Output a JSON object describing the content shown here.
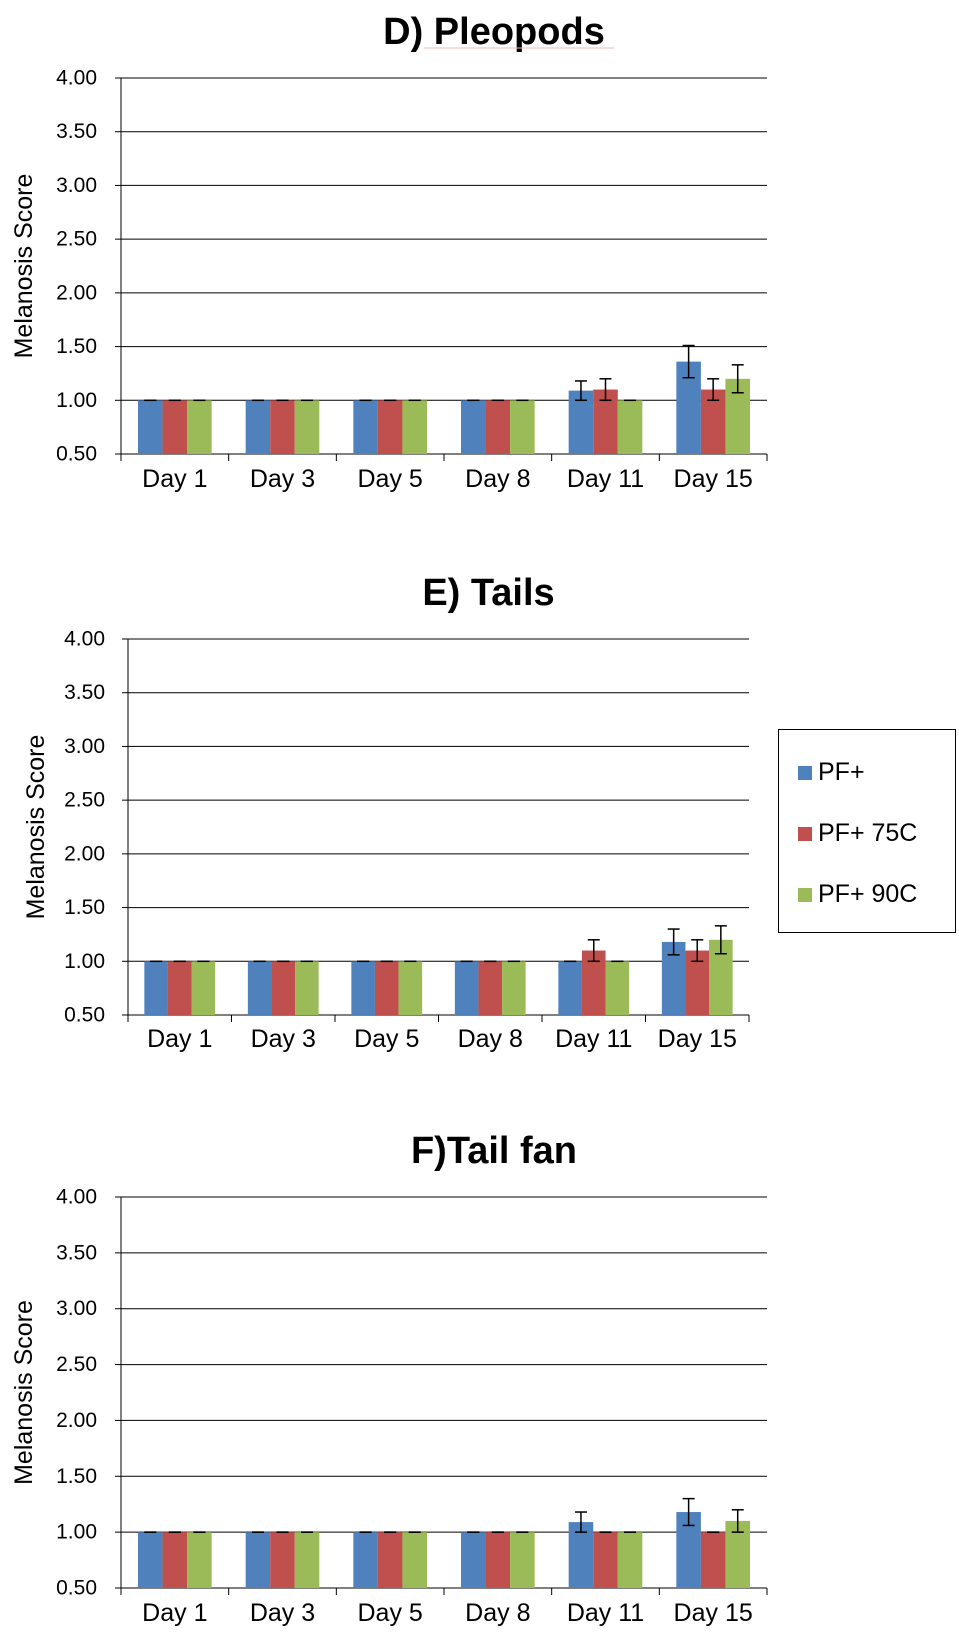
{
  "colors": {
    "series1": "#4f81bd",
    "series2": "#c0504d",
    "series3": "#9bbb59",
    "grid": "#000000"
  },
  "legend": {
    "placement": "right",
    "items": [
      {
        "label": "PF+",
        "color": "#4f81bd"
      },
      {
        "label": "PF+ 75C",
        "color": "#c0504d"
      },
      {
        "label": "PF+ 90C",
        "color": "#9bbb59"
      }
    ]
  },
  "chart_data": [
    {
      "type": "bar",
      "title": "D) Pleopods",
      "ylabel": "Melanosis Score",
      "xlabel": "",
      "ylim": [
        0.5,
        4.0
      ],
      "yticks": [
        "0.50",
        "1.00",
        "1.50",
        "2.00",
        "2.50",
        "3.00",
        "3.50",
        "4.00"
      ],
      "grid": true,
      "categories": [
        "Day 1",
        "Day 3",
        "Day 5",
        "Day 8",
        "Day 11",
        "Day 15"
      ],
      "series": [
        {
          "name": "PF+",
          "values": [
            1.0,
            1.0,
            1.0,
            1.0,
            1.09,
            1.36
          ],
          "errors": [
            0,
            0,
            0,
            0,
            0.09,
            0.15
          ]
        },
        {
          "name": "PF+ 75C",
          "values": [
            1.0,
            1.0,
            1.0,
            1.0,
            1.1,
            1.1
          ],
          "errors": [
            0,
            0,
            0,
            0,
            0.1,
            0.1
          ]
        },
        {
          "name": "PF+ 90C",
          "values": [
            1.0,
            1.0,
            1.0,
            1.0,
            1.0,
            1.2
          ],
          "errors": [
            0,
            0,
            0,
            0,
            0,
            0.13
          ]
        }
      ]
    },
    {
      "type": "bar",
      "title": "E) Tails",
      "ylabel": "Melanosis Score",
      "xlabel": "",
      "ylim": [
        0.5,
        4.0
      ],
      "yticks": [
        "0.50",
        "1.00",
        "1.50",
        "2.00",
        "2.50",
        "3.00",
        "3.50",
        "4.00"
      ],
      "grid": true,
      "categories": [
        "Day 1",
        "Day 3",
        "Day 5",
        "Day 8",
        "Day 11",
        "Day 15"
      ],
      "series": [
        {
          "name": "PF+",
          "values": [
            1.0,
            1.0,
            1.0,
            1.0,
            1.0,
            1.18
          ],
          "errors": [
            0,
            0,
            0,
            0,
            0,
            0.12
          ]
        },
        {
          "name": "PF+ 75C",
          "values": [
            1.0,
            1.0,
            1.0,
            1.0,
            1.1,
            1.1
          ],
          "errors": [
            0,
            0,
            0,
            0,
            0.1,
            0.1
          ]
        },
        {
          "name": "PF+ 90C",
          "values": [
            1.0,
            1.0,
            1.0,
            1.0,
            1.0,
            1.2
          ],
          "errors": [
            0,
            0,
            0,
            0,
            0,
            0.13
          ]
        }
      ]
    },
    {
      "type": "bar",
      "title": "F)Tail fan",
      "ylabel": "Melanosis Score",
      "xlabel": "",
      "ylim": [
        0.5,
        4.0
      ],
      "yticks": [
        "0.50",
        "1.00",
        "1.50",
        "2.00",
        "2.50",
        "3.00",
        "3.50",
        "4.00"
      ],
      "grid": true,
      "categories": [
        "Day 1",
        "Day 3",
        "Day 5",
        "Day 8",
        "Day 11",
        "Day 15"
      ],
      "series": [
        {
          "name": "PF+",
          "values": [
            1.0,
            1.0,
            1.0,
            1.0,
            1.09,
            1.18
          ],
          "errors": [
            0,
            0,
            0,
            0,
            0.09,
            0.12
          ]
        },
        {
          "name": "PF+ 75C",
          "values": [
            1.0,
            1.0,
            1.0,
            1.0,
            1.0,
            1.0
          ],
          "errors": [
            0,
            0,
            0,
            0,
            0,
            0
          ]
        },
        {
          "name": "PF+ 90C",
          "values": [
            1.0,
            1.0,
            1.0,
            1.0,
            1.0,
            1.1
          ],
          "errors": [
            0,
            0,
            0,
            0,
            0,
            0.1
          ]
        }
      ]
    }
  ]
}
